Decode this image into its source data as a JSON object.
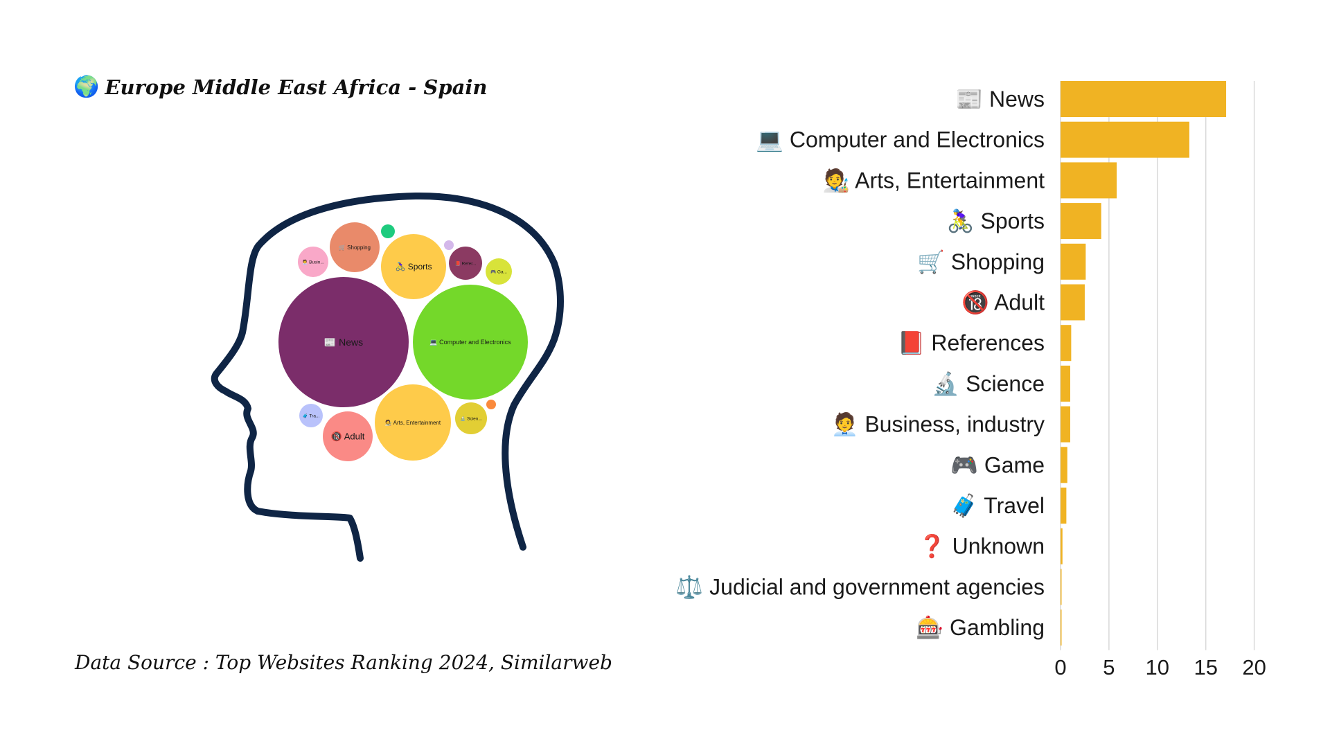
{
  "title": {
    "icon": "🌍",
    "text": "Europe Middle East Africa - Spain"
  },
  "source": "Data Source : Top Websites Ranking 2024, Similarweb",
  "colors": {
    "bar": "#F0B323",
    "grid": "#d9d9d9",
    "head_outline": "#0f2545"
  },
  "bubbles": [
    {
      "label": "📰 News",
      "color": "#7B2D6A"
    },
    {
      "label": "💻 Computer and Electronics",
      "color": "#74D82A"
    },
    {
      "label": "🧑‍🎨 Arts, Entertainment",
      "color": "#FECB4A"
    },
    {
      "label": "🚴‍♀️ Sports",
      "color": "#FECB4A"
    },
    {
      "label": "🛒 Shopping",
      "color": "#E98A6A"
    },
    {
      "label": "🔞 Adult",
      "color": "#FA8A86"
    },
    {
      "label": "📕 Refer...",
      "color": "#8B3A62"
    },
    {
      "label": "🔬 Scien...",
      "color": "#E2CE34"
    },
    {
      "label": "🧑‍💼 Busin...",
      "color": "#F9A8C8"
    },
    {
      "label": "🎮 Ga...",
      "color": "#D8E33A"
    },
    {
      "label": "🧳 Tra...",
      "color": "#B9C2FB"
    },
    {
      "label": "",
      "color": "#1ECB7E"
    },
    {
      "label": "",
      "color": "#D4B8EA"
    },
    {
      "label": "",
      "color": "#FA8A3C"
    }
  ],
  "chart_data": {
    "type": "bar",
    "orientation": "horizontal",
    "categories": [
      "📰 News",
      "💻 Computer and Electronics",
      "🧑‍🎨 Arts, Entertainment",
      "🚴‍♀️ Sports",
      "🛒 Shopping",
      "🔞 Adult",
      "📕 References",
      "🔬 Science",
      "🧑‍💼 Business, industry",
      "🎮 Game",
      "🧳 Travel",
      "❓ Unknown",
      "⚖️ Judicial and government agencies",
      "🎰 Gambling"
    ],
    "values": [
      17.1,
      13.3,
      5.8,
      4.2,
      2.6,
      2.5,
      1.1,
      1.0,
      1.0,
      0.7,
      0.6,
      0.2,
      0.05,
      0.05
    ],
    "xlim": [
      0,
      21
    ],
    "xticks": [
      "0",
      "5",
      "10",
      "15",
      "20"
    ],
    "grid": "vertical"
  }
}
